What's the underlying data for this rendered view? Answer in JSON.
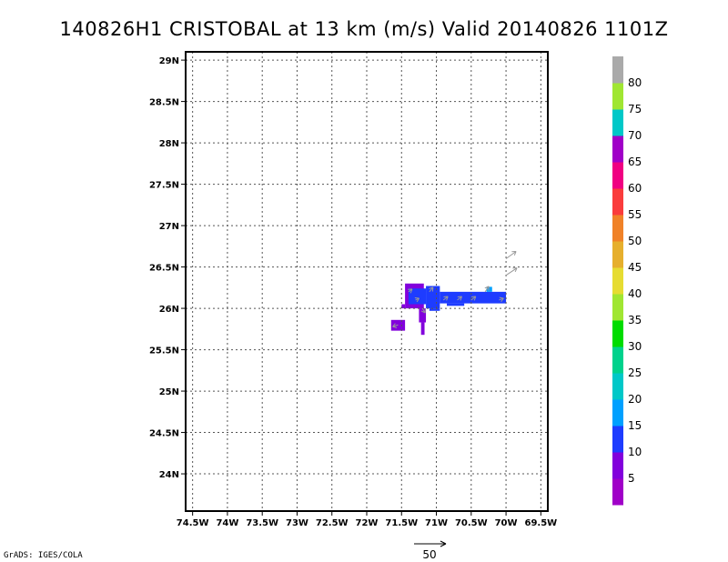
{
  "title": "140826H1 CRISTOBAL at 13 km (m/s) Valid 20140826 1101Z",
  "credit": "GrADS: IGES/COLA",
  "reference_vector": {
    "value": 50,
    "label": "50"
  },
  "chart_data": {
    "type": "heatmap",
    "title": "140826H1 CRISTOBAL at 13 km (m/s) Valid 20140826 1101Z",
    "xlabel": "",
    "ylabel": "",
    "xlim": [
      -74.6,
      -69.4
    ],
    "ylim": [
      23.55,
      29.1
    ],
    "grid": true,
    "x_ticks": [
      {
        "value": -74.5,
        "label": "74.5W"
      },
      {
        "value": -74,
        "label": "74W"
      },
      {
        "value": -73.5,
        "label": "73.5W"
      },
      {
        "value": -73,
        "label": "73W"
      },
      {
        "value": -72.5,
        "label": "72.5W"
      },
      {
        "value": -72,
        "label": "72W"
      },
      {
        "value": -71.5,
        "label": "71.5W"
      },
      {
        "value": -71,
        "label": "71W"
      },
      {
        "value": -70.5,
        "label": "70.5W"
      },
      {
        "value": -70,
        "label": "70W"
      },
      {
        "value": -69.5,
        "label": "69.5W"
      }
    ],
    "y_ticks": [
      {
        "value": 24,
        "label": "24N"
      },
      {
        "value": 24.5,
        "label": "24.5N"
      },
      {
        "value": 25,
        "label": "25N"
      },
      {
        "value": 25.5,
        "label": "25.5N"
      },
      {
        "value": 26,
        "label": "26N"
      },
      {
        "value": 26.5,
        "label": "26.5N"
      },
      {
        "value": 27,
        "label": "27N"
      },
      {
        "value": 27.5,
        "label": "27.5N"
      },
      {
        "value": 28,
        "label": "28N"
      },
      {
        "value": 28.5,
        "label": "28.5N"
      },
      {
        "value": 29,
        "label": "29N"
      }
    ],
    "colorbar": {
      "colors": [
        "#a000c8",
        "#8200dc",
        "#1e3cff",
        "#00a0ff",
        "#00c8c8",
        "#00d28c",
        "#00dc00",
        "#a0e632",
        "#e6dc32",
        "#e6af2d",
        "#f08228",
        "#fa3c3c",
        "#f00082",
        "#a000c8",
        "#00c8c8",
        "#a0e632",
        "#aaaaaa"
      ],
      "labels": [
        "5",
        "10",
        "15",
        "20",
        "25",
        "30",
        "35",
        "40",
        "45",
        "50",
        "55",
        "60",
        "65",
        "70",
        "75",
        "80"
      ]
    },
    "cells": [
      {
        "lon0": -71.65,
        "lon1": -71.45,
        "lat0": 25.73,
        "lat1": 25.86,
        "value": 7
      },
      {
        "lon0": -71.45,
        "lon1": -71.18,
        "lat0": 26.0,
        "lat1": 26.3,
        "value": 7
      },
      {
        "lon0": -71.4,
        "lon1": -71.15,
        "lat0": 26.05,
        "lat1": 26.24,
        "value": 12
      },
      {
        "lon0": -71.5,
        "lon1": -71.45,
        "lat0": 26.0,
        "lat1": 26.05,
        "value": 7
      },
      {
        "lon0": -71.25,
        "lon1": -71.15,
        "lat0": 25.83,
        "lat1": 26.0,
        "value": 7
      },
      {
        "lon0": -71.22,
        "lon1": -71.17,
        "lat0": 25.68,
        "lat1": 25.83,
        "value": 7
      },
      {
        "lon0": -71.15,
        "lon1": -70.95,
        "lat0": 26.0,
        "lat1": 26.27,
        "value": 12
      },
      {
        "lon0": -70.95,
        "lon1": -70.0,
        "lat0": 26.06,
        "lat1": 26.2,
        "value": 12
      },
      {
        "lon0": -70.85,
        "lon1": -70.6,
        "lat0": 26.03,
        "lat1": 26.06,
        "value": 12
      },
      {
        "lon0": -70.28,
        "lon1": -70.2,
        "lat0": 26.2,
        "lat1": 26.26,
        "value": 17
      },
      {
        "lon0": -71.1,
        "lon1": -70.95,
        "lat0": 25.97,
        "lat1": 26.0,
        "value": 12
      }
    ],
    "vectors": [
      {
        "lon": -71.55,
        "lat": 25.8,
        "u": -6,
        "v": -2
      },
      {
        "lon": -71.4,
        "lat": 26.2,
        "u": 4,
        "v": 3
      },
      {
        "lon": -71.3,
        "lat": 26.1,
        "u": 4,
        "v": 2
      },
      {
        "lon": -71.2,
        "lat": 26.0,
        "u": 3,
        "v": -5
      },
      {
        "lon": -71.1,
        "lat": 26.2,
        "u": 4,
        "v": 5
      },
      {
        "lon": -70.9,
        "lat": 26.1,
        "u": 5,
        "v": 4
      },
      {
        "lon": -70.7,
        "lat": 26.1,
        "u": 5,
        "v": 4
      },
      {
        "lon": -70.5,
        "lat": 26.1,
        "u": 5,
        "v": 4
      },
      {
        "lon": -70.3,
        "lat": 26.2,
        "u": 4,
        "v": 6
      },
      {
        "lon": -70.1,
        "lat": 26.1,
        "u": 5,
        "v": 2
      },
      {
        "lon": -70.0,
        "lat": 26.4,
        "u": 12,
        "v": 8
      },
      {
        "lon": -70.0,
        "lat": 26.6,
        "u": 11,
        "v": 8
      }
    ]
  }
}
